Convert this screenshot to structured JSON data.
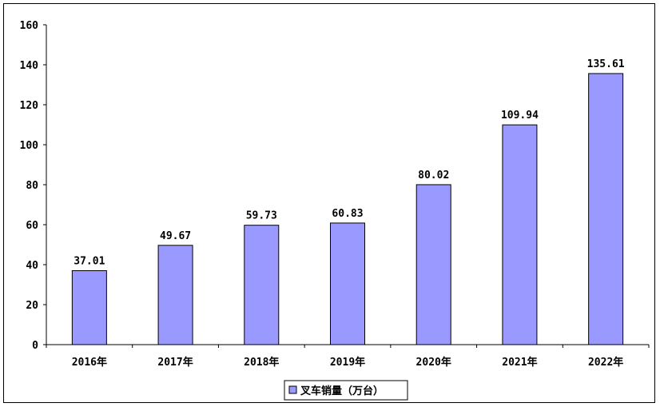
{
  "chart_data": {
    "type": "bar",
    "categories": [
      "2016年",
      "2017年",
      "2018年",
      "2019年",
      "2020年",
      "2021年",
      "2022年"
    ],
    "series": [
      {
        "name": "叉车销量（万台）",
        "values": [
          37.01,
          49.67,
          59.73,
          60.83,
          80.02,
          109.94,
          135.61
        ],
        "labels": [
          "37.01",
          "49.67",
          "59.73",
          "60.83",
          "80.02",
          "109.94",
          "135.61"
        ],
        "color": "#9999ff"
      }
    ],
    "ylim": [
      0,
      160
    ],
    "yticks": [
      0,
      20,
      40,
      60,
      80,
      100,
      120,
      140,
      160
    ],
    "ytick_labels": [
      "0",
      "20",
      "40",
      "60",
      "80",
      "100",
      "120",
      "140",
      "160"
    ],
    "grid": false,
    "legend_position": "bottom-center",
    "bar_edge_color": "#000000"
  }
}
